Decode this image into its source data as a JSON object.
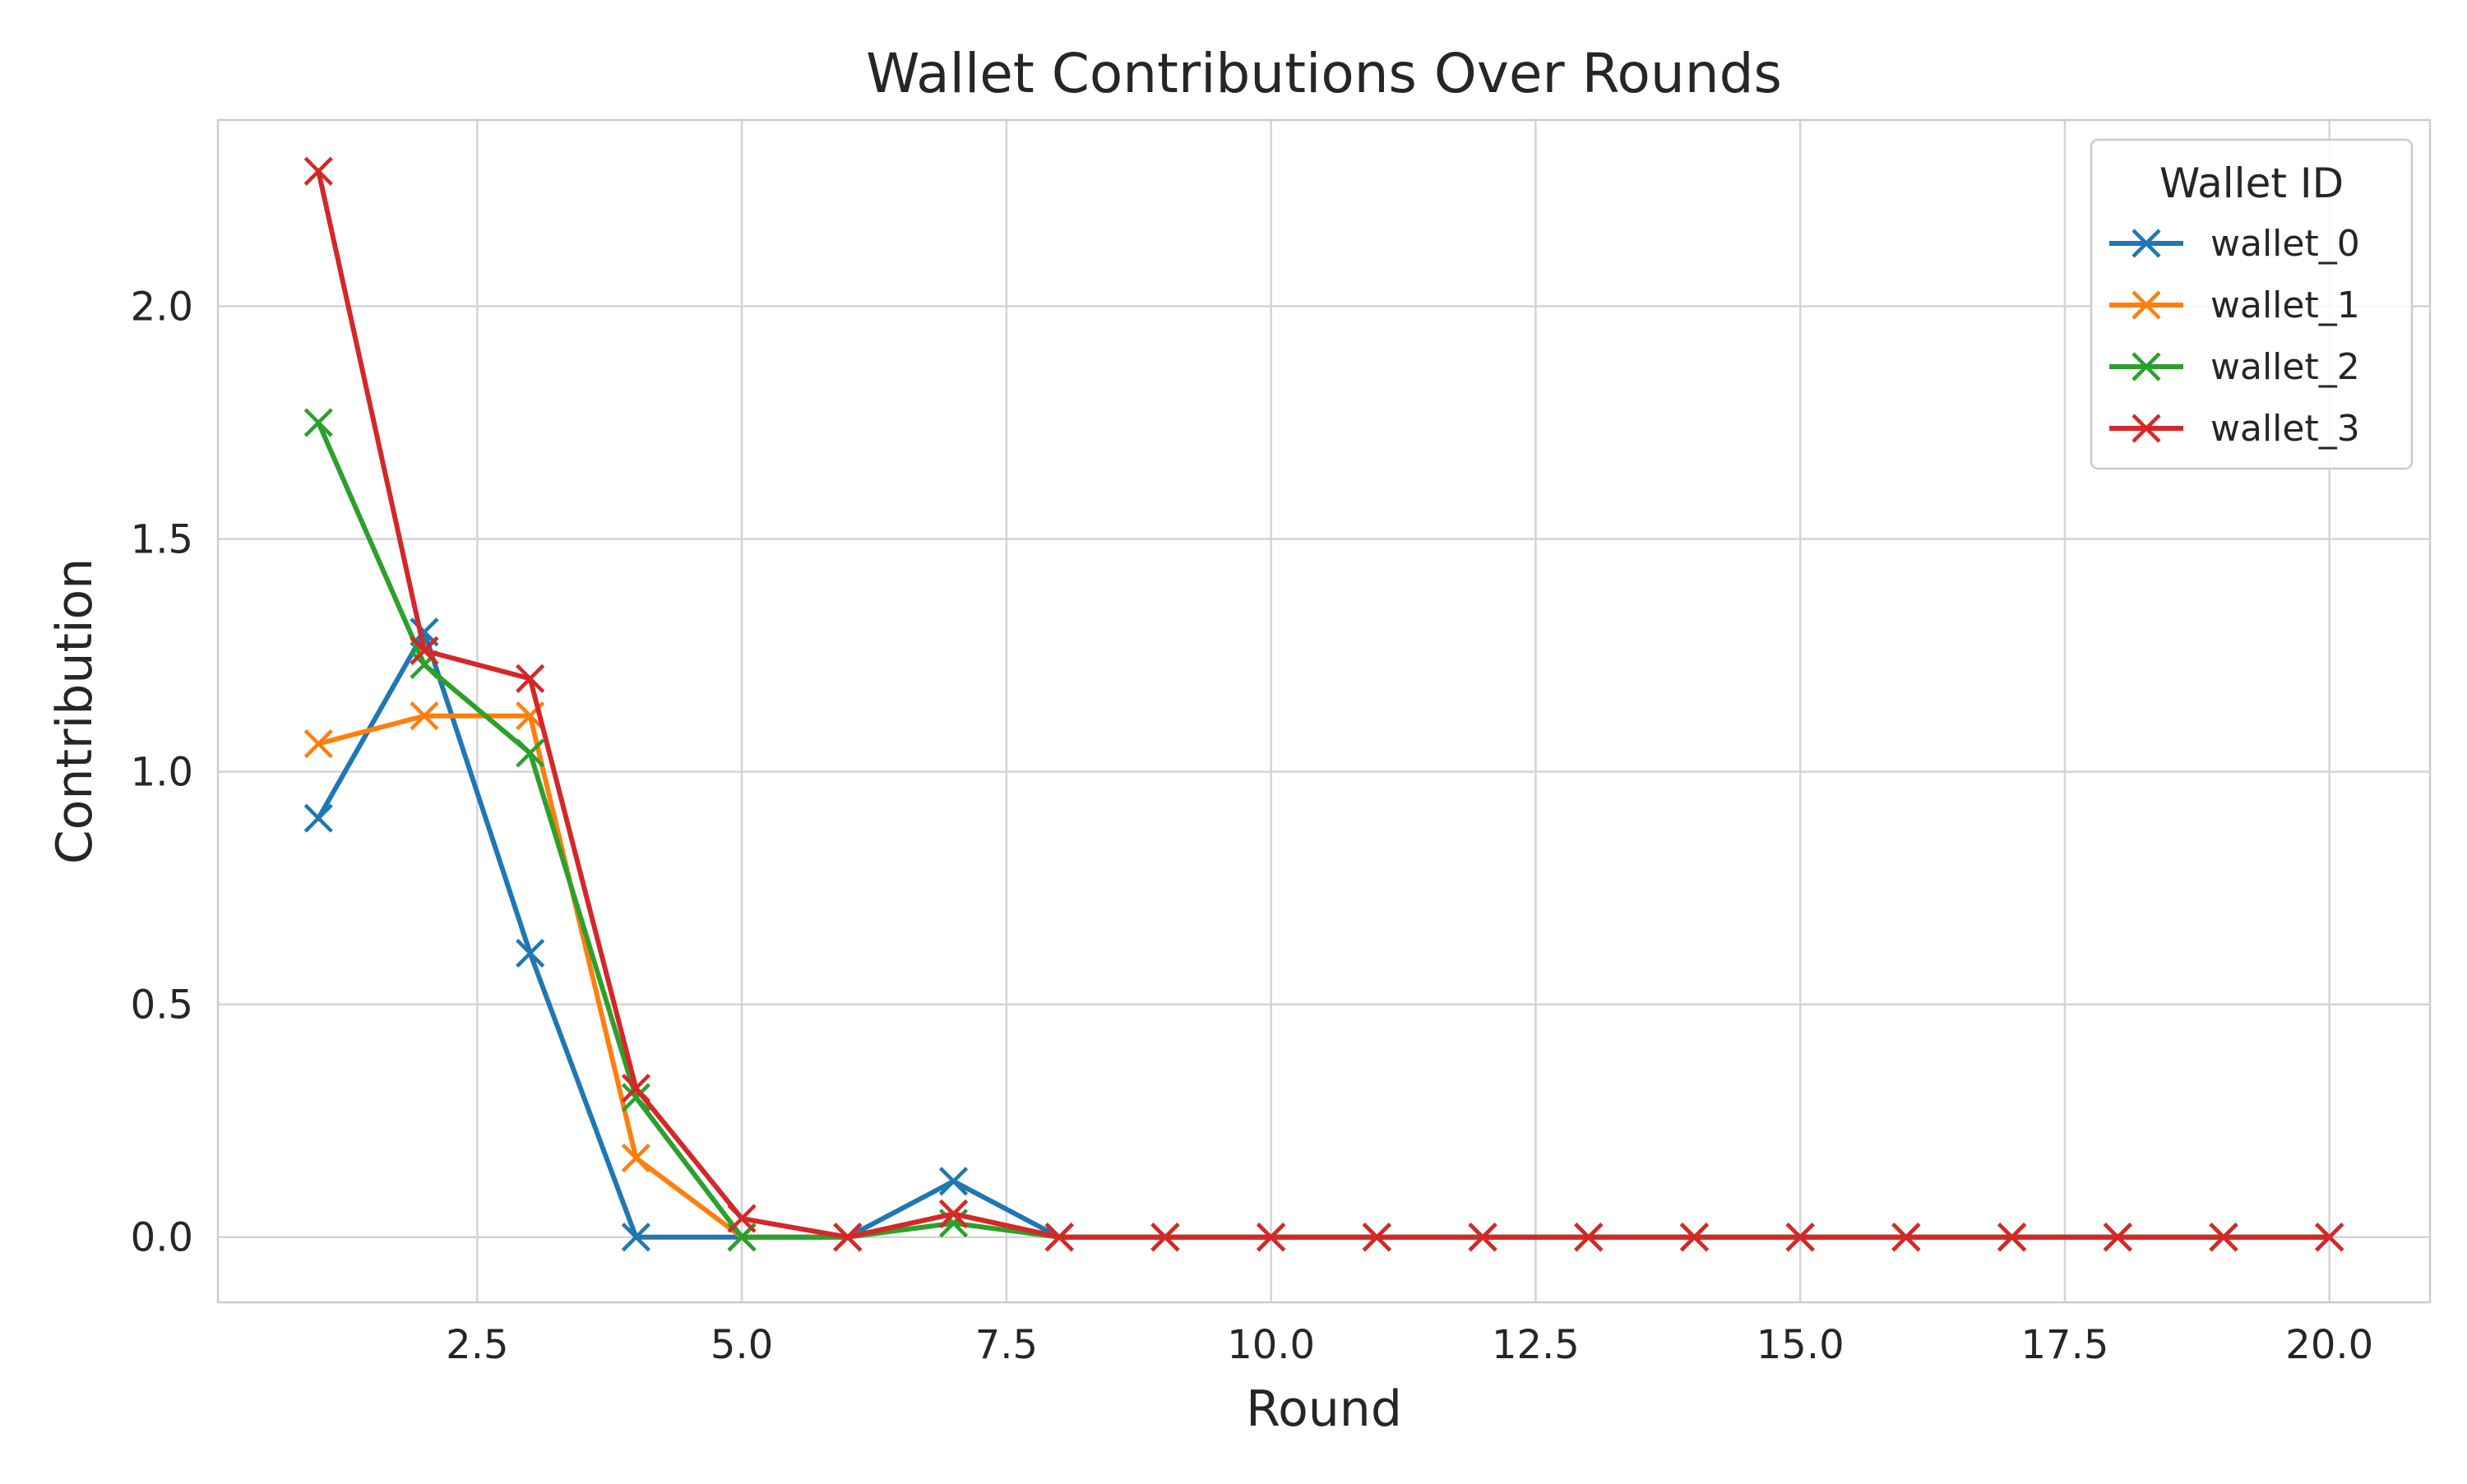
{
  "chart_data": {
    "type": "line",
    "title": "Wallet Contributions Over Rounds",
    "xlabel": "Round",
    "ylabel": "Contribution",
    "xlim": [
      0.05,
      20.95
    ],
    "ylim": [
      -0.14,
      2.4
    ],
    "xticks": [
      2.5,
      5.0,
      7.5,
      10.0,
      12.5,
      15.0,
      17.5,
      20.0
    ],
    "xtick_labels": [
      "2.5",
      "5.0",
      "7.5",
      "10.0",
      "12.5",
      "15.0",
      "17.5",
      "20.0"
    ],
    "yticks": [
      0.0,
      0.5,
      1.0,
      1.5,
      2.0
    ],
    "ytick_labels": [
      "0.0",
      "0.5",
      "1.0",
      "1.5",
      "2.0"
    ],
    "grid": true,
    "marker": "x",
    "legend": {
      "title": "Wallet ID",
      "position": "top-right"
    },
    "x": [
      1,
      2,
      3,
      4,
      5,
      6,
      7,
      8,
      9,
      10,
      11,
      12,
      13,
      14,
      15,
      16,
      17,
      18,
      19,
      20
    ],
    "series": [
      {
        "name": "wallet_0",
        "color": "#1f77b4",
        "values": [
          0.9,
          1.3,
          0.61,
          0.0,
          0.0,
          0.0,
          0.12,
          0.0,
          0.0,
          0.0,
          0.0,
          0.0,
          0.0,
          0.0,
          0.0,
          0.0,
          0.0,
          0.0,
          0.0,
          0.0
        ]
      },
      {
        "name": "wallet_1",
        "color": "#ff7f0e",
        "values": [
          1.06,
          1.12,
          1.12,
          0.17,
          0.0,
          0.0,
          0.05,
          0.0,
          0.0,
          0.0,
          0.0,
          0.0,
          0.0,
          0.0,
          0.0,
          0.0,
          0.0,
          0.0,
          0.0,
          0.0
        ]
      },
      {
        "name": "wallet_2",
        "color": "#2ca02c",
        "values": [
          1.75,
          1.23,
          1.04,
          0.3,
          0.0,
          0.0,
          0.03,
          0.0,
          0.0,
          0.0,
          0.0,
          0.0,
          0.0,
          0.0,
          0.0,
          0.0,
          0.0,
          0.0,
          0.0,
          0.0
        ]
      },
      {
        "name": "wallet_3",
        "color": "#d62728",
        "values": [
          2.29,
          1.26,
          1.2,
          0.32,
          0.04,
          0.0,
          0.05,
          0.0,
          0.0,
          0.0,
          0.0,
          0.0,
          0.0,
          0.0,
          0.0,
          0.0,
          0.0,
          0.0,
          0.0,
          0.0
        ]
      }
    ]
  }
}
